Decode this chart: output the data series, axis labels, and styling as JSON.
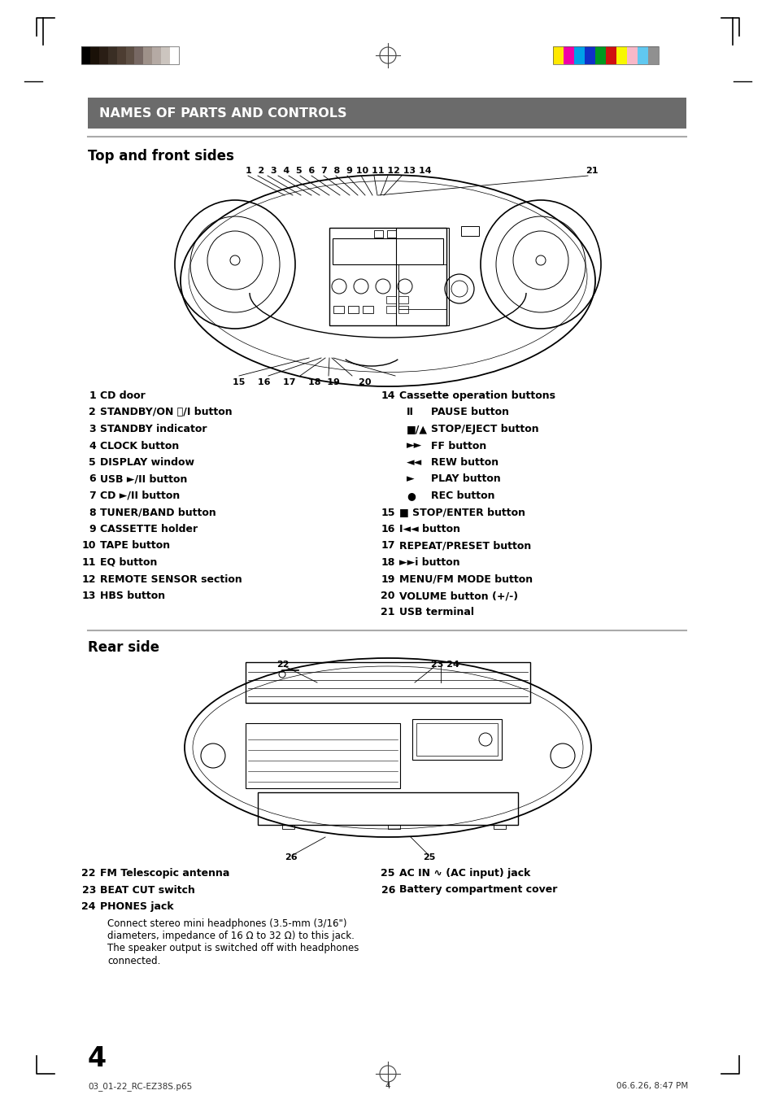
{
  "page_bg": "#ffffff",
  "header_bar_color": "#6b6b6b",
  "header_text": "NAMES OF PARTS AND CONTROLS",
  "header_text_color": "#ffffff",
  "section1_title": "Top and front sides",
  "section2_title": "Rear side",
  "left_items": [
    [
      1,
      "CD door"
    ],
    [
      2,
      "STANDBY/ON ⏻/I button"
    ],
    [
      3,
      "STANDBY indicator"
    ],
    [
      4,
      "CLOCK button"
    ],
    [
      5,
      "DISPLAY window"
    ],
    [
      6,
      "USB ►/II button"
    ],
    [
      7,
      "CD ►/II button"
    ],
    [
      8,
      "TUNER/BAND button"
    ],
    [
      9,
      "CASSETTE holder"
    ],
    [
      10,
      "TAPE button"
    ],
    [
      11,
      "EQ button"
    ],
    [
      12,
      "REMOTE SENSOR section"
    ],
    [
      13,
      "HBS button"
    ]
  ],
  "right_items": [
    [
      14,
      "Cassette operation buttons",
      true
    ],
    [
      null,
      "II",
      "PAUSE button"
    ],
    [
      null,
      "■/▲",
      "STOP/EJECT button"
    ],
    [
      null,
      "►►",
      "FF button"
    ],
    [
      null,
      "◄◄",
      "REW button"
    ],
    [
      null,
      "►",
      "PLAY button"
    ],
    [
      null,
      "●",
      "REC button"
    ],
    [
      15,
      "■ STOP/ENTER button",
      false
    ],
    [
      16,
      "I◄◄ button",
      false
    ],
    [
      17,
      "REPEAT/PRESET button",
      false
    ],
    [
      18,
      "►►i button",
      false
    ],
    [
      19,
      "MENU/FM MODE button",
      false
    ],
    [
      20,
      "VOLUME button (+/-)",
      false
    ],
    [
      21,
      "USB terminal",
      false
    ]
  ],
  "rear_left_items": [
    [
      22,
      "FM Telescopic antenna"
    ],
    [
      23,
      "BEAT CUT switch"
    ],
    [
      24,
      "PHONES jack"
    ]
  ],
  "phones_desc": [
    "Connect stereo mini headphones (3.5-mm (3/16\")",
    "diameters, impedance of 16 Ω to 32 Ω) to this jack.",
    "The speaker output is switched off with headphones",
    "connected."
  ],
  "rear_right_items": [
    [
      25,
      "AC IN ∿ (AC input) jack"
    ],
    [
      26,
      "Battery compartment cover"
    ]
  ],
  "page_number": "4",
  "footer_left": "03_01-22_RC-EZ38S.p65",
  "footer_center": "4",
  "footer_right": "06.6.26, 8:47 PM",
  "color_bar_left": [
    "#000000",
    "#1a1108",
    "#2a1e15",
    "#3a2e24",
    "#4d3d32",
    "#5e4f44",
    "#776863",
    "#9e9189",
    "#b5aaa4",
    "#ccc5bf",
    "#ffffff"
  ],
  "color_bar_right": [
    "#ffe800",
    "#f000a8",
    "#00a0e8",
    "#1030c8",
    "#009820",
    "#d01010",
    "#f8f800",
    "#f8b8c8",
    "#60c8f0",
    "#909090"
  ]
}
